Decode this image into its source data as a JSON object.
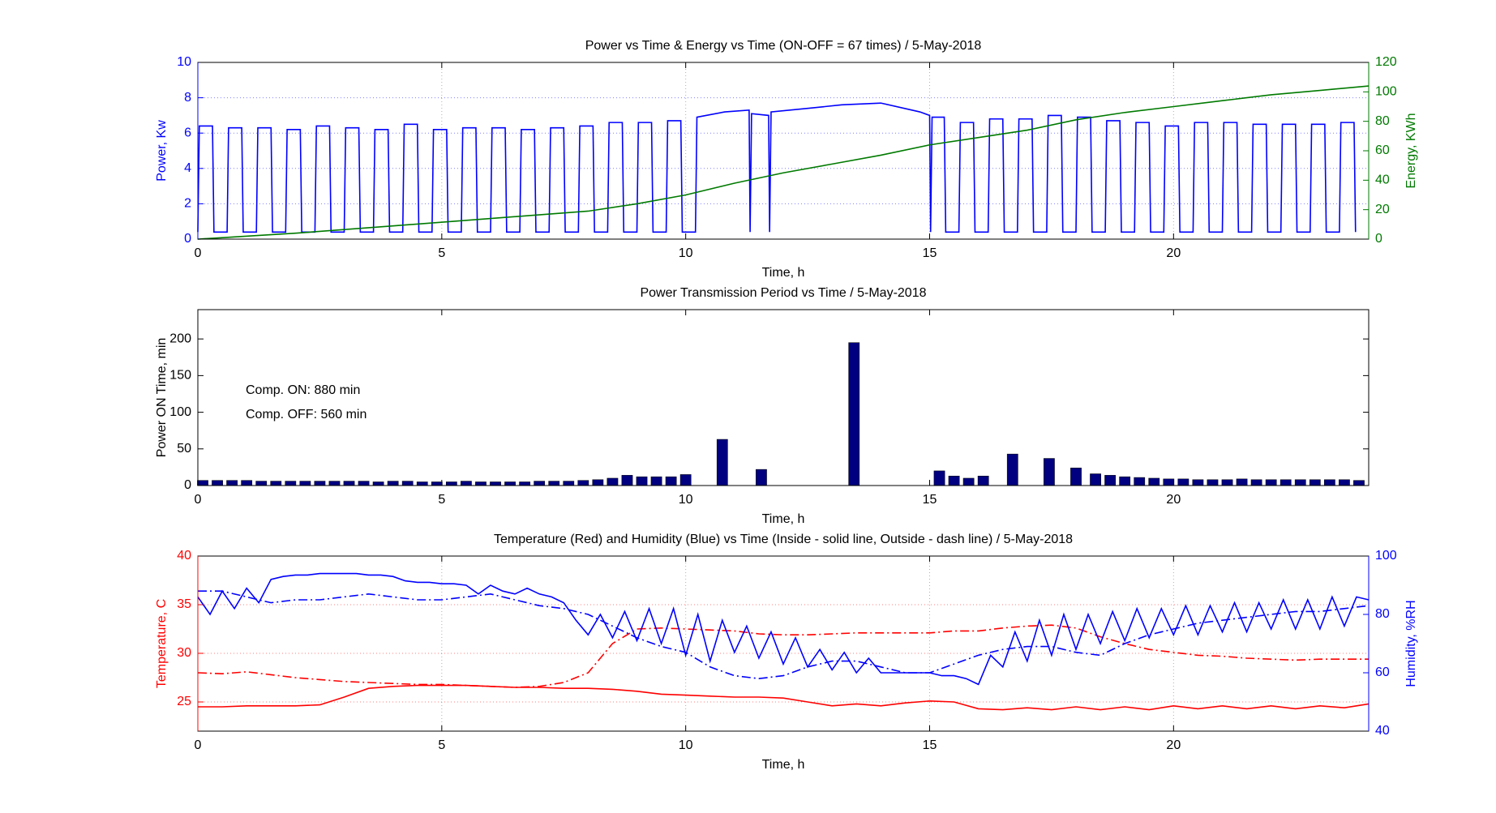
{
  "chart_data": [
    {
      "type": "line",
      "title": "Power vs Time & Energy vs Time (ON-OFF = 67 times) / 5-May-2018",
      "xlabel": "Time, h",
      "ylabel": "Power, Kw",
      "y2label": "Energy, KWh",
      "xlim": [
        0,
        24
      ],
      "xticks": [
        0,
        5,
        10,
        15,
        20
      ],
      "ylim": [
        0,
        10
      ],
      "yticks": [
        0,
        2,
        4,
        6,
        8,
        10
      ],
      "y2lim": [
        0,
        120
      ],
      "y2ticks": [
        0,
        20,
        40,
        60,
        80,
        100,
        120
      ],
      "grid": true,
      "series": [
        {
          "name": "Power",
          "color": "#0000ff",
          "dash": "solid",
          "x": [
            0,
            0.03,
            0.3,
            0.33,
            0.6,
            0.63,
            0.9,
            0.93,
            1.2,
            1.23,
            1.5,
            1.53,
            1.8,
            1.83,
            2.1,
            2.13,
            2.4,
            2.43,
            2.7,
            2.73,
            3,
            3.03,
            3.3,
            3.33,
            3.6,
            3.63,
            3.9,
            3.93,
            4.2,
            4.23,
            4.5,
            4.53,
            4.8,
            4.83,
            5.1,
            5.13,
            5.4,
            5.43,
            5.7,
            5.73,
            6,
            6.03,
            6.3,
            6.33,
            6.6,
            6.63,
            6.9,
            6.93,
            7.2,
            7.23,
            7.5,
            7.53,
            7.8,
            7.83,
            8.1,
            8.13,
            8.4,
            8.43,
            8.7,
            8.73,
            9,
            9.03,
            9.3,
            9.33,
            9.6,
            9.63,
            9.9,
            9.93,
            10.2,
            10.23,
            10.8,
            11.3,
            11.32,
            11.35,
            11.7,
            11.72,
            11.75,
            12.5,
            13.2,
            14,
            14.8,
            15,
            15.02,
            15.05,
            15.3,
            15.33,
            15.6,
            15.63,
            15.9,
            15.93,
            16.2,
            16.23,
            16.5,
            16.53,
            16.8,
            16.83,
            17.1,
            17.13,
            17.4,
            17.43,
            17.7,
            17.73,
            18,
            18.03,
            18.3,
            18.33,
            18.6,
            18.63,
            18.9,
            18.93,
            19.2,
            19.23,
            19.5,
            19.53,
            19.8,
            19.83,
            20.1,
            20.13,
            20.4,
            20.43,
            20.7,
            20.73,
            21,
            21.03,
            21.3,
            21.33,
            21.6,
            21.63,
            21.9,
            21.93,
            22.2,
            22.23,
            22.5,
            22.53,
            22.8,
            22.83,
            23.1,
            23.13,
            23.4,
            23.43,
            23.7,
            23.73
          ],
          "values": [
            0.4,
            6.4,
            6.4,
            0.4,
            0.4,
            6.3,
            6.3,
            0.4,
            0.4,
            6.3,
            6.3,
            0.4,
            0.4,
            6.2,
            6.2,
            0.4,
            0.4,
            6.4,
            6.4,
            0.4,
            0.4,
            6.3,
            6.3,
            0.4,
            0.4,
            6.2,
            6.2,
            0.4,
            0.4,
            6.5,
            6.5,
            0.4,
            0.4,
            6.2,
            6.2,
            0.4,
            0.4,
            6.3,
            6.3,
            0.4,
            0.4,
            6.3,
            6.3,
            0.4,
            0.4,
            6.2,
            6.2,
            0.4,
            0.4,
            6.3,
            6.3,
            0.4,
            0.4,
            6.4,
            6.4,
            0.4,
            0.4,
            6.6,
            6.6,
            0.4,
            0.4,
            6.6,
            6.6,
            0.4,
            0.4,
            6.7,
            6.7,
            0.4,
            0.4,
            6.9,
            7.2,
            7.3,
            0.4,
            7.1,
            7.0,
            0.4,
            7.2,
            7.4,
            7.6,
            7.7,
            7.2,
            7.0,
            0.4,
            6.9,
            6.9,
            0.4,
            0.4,
            6.6,
            6.6,
            0.4,
            0.4,
            6.8,
            6.8,
            0.4,
            0.4,
            6.8,
            6.8,
            0.4,
            0.4,
            7.0,
            7.0,
            0.4,
            0.4,
            6.9,
            6.9,
            0.4,
            0.4,
            6.7,
            6.7,
            0.4,
            0.4,
            6.6,
            6.6,
            0.4,
            0.4,
            6.4,
            6.4,
            0.4,
            0.4,
            6.6,
            6.6,
            0.4,
            0.4,
            6.6,
            6.6,
            0.4,
            0.4,
            6.5,
            6.5,
            0.4,
            0.4,
            6.5,
            6.5,
            0.4,
            0.4,
            6.5,
            6.5,
            0.4,
            0.4,
            6.6,
            6.6,
            0.4
          ]
        },
        {
          "name": "Energy",
          "color": "#007a00",
          "dash": "solid",
          "axis": "y2",
          "x": [
            0,
            2,
            4,
            6,
            8,
            9,
            10,
            11,
            12,
            13,
            14,
            15,
            16,
            17,
            18,
            19,
            20,
            21,
            22,
            23,
            24
          ],
          "values": [
            0,
            4,
            9,
            14,
            19,
            24,
            30,
            38,
            45,
            51,
            57,
            64,
            69,
            74,
            81,
            86,
            90,
            94,
            98,
            101,
            104
          ]
        }
      ]
    },
    {
      "type": "bar",
      "title": "Power Transmission Period vs Time / 5-May-2018",
      "xlabel": "Time, h",
      "ylabel": "Power ON Time, min",
      "xlim": [
        0,
        24
      ],
      "xticks": [
        0,
        5,
        10,
        15,
        20
      ],
      "ylim": [
        0,
        240
      ],
      "yticks": [
        0,
        50,
        100,
        150,
        200
      ],
      "grid": false,
      "color": "#000080",
      "annotations": [
        "Comp. ON: 880 min",
        "Comp. OFF: 560 min"
      ],
      "x": [
        0.1,
        0.4,
        0.7,
        1.0,
        1.3,
        1.6,
        1.9,
        2.2,
        2.5,
        2.8,
        3.1,
        3.4,
        3.7,
        4.0,
        4.3,
        4.6,
        4.9,
        5.2,
        5.5,
        5.8,
        6.1,
        6.4,
        6.7,
        7.0,
        7.3,
        7.6,
        7.9,
        8.2,
        8.5,
        8.8,
        9.1,
        9.4,
        9.7,
        10.0,
        10.75,
        11.55,
        13.45,
        15.2,
        15.5,
        15.8,
        16.1,
        16.7,
        17.45,
        18.0,
        18.4,
        18.7,
        19.0,
        19.3,
        19.6,
        19.9,
        20.2,
        20.5,
        20.8,
        21.1,
        21.4,
        21.7,
        22.0,
        22.3,
        22.6,
        22.9,
        23.2,
        23.5,
        23.8
      ],
      "values": [
        7,
        7,
        7,
        7,
        6,
        6,
        6,
        6,
        6,
        6,
        6,
        6,
        5,
        6,
        6,
        5,
        5,
        5,
        6,
        5,
        5,
        5,
        5,
        6,
        6,
        6,
        7,
        8,
        10,
        14,
        12,
        12,
        12,
        15,
        63,
        22,
        195,
        20,
        13,
        10,
        13,
        43,
        37,
        24,
        16,
        14,
        12,
        11,
        10,
        9,
        9,
        8,
        8,
        8,
        9,
        8,
        8,
        8,
        8,
        8,
        8,
        8,
        7
      ]
    },
    {
      "type": "line",
      "title": "Temperature (Red) and Humidity (Blue) vs Time (Inside - solid line, Outside - dash line) / 5-May-2018",
      "xlabel": "Time, h",
      "ylabel": "Temperature, C",
      "y2label": "Humidity, %RH",
      "xlim": [
        0,
        24
      ],
      "xticks": [
        0,
        5,
        10,
        15,
        20
      ],
      "ylim": [
        22,
        40
      ],
      "yticks": [
        25,
        30,
        35,
        40
      ],
      "y2lim": [
        40,
        100
      ],
      "y2ticks": [
        40,
        60,
        80,
        100
      ],
      "grid": true,
      "series": [
        {
          "name": "Inside temperature",
          "color": "#ff0000",
          "dash": "solid",
          "x": [
            0,
            0.5,
            1,
            1.5,
            2,
            2.5,
            3,
            3.5,
            4,
            4.5,
            5,
            5.5,
            6,
            6.5,
            7,
            7.5,
            8,
            8.5,
            9,
            9.5,
            10,
            10.5,
            11,
            11.5,
            12,
            12.5,
            13,
            13.5,
            14,
            14.5,
            15,
            15.5,
            16,
            16.5,
            17,
            17.5,
            18,
            18.5,
            19,
            19.5,
            20,
            20.5,
            21,
            21.5,
            22,
            22.5,
            23,
            23.5,
            24
          ],
          "values": [
            24.5,
            24.5,
            24.6,
            24.6,
            24.6,
            24.7,
            25.5,
            26.4,
            26.6,
            26.7,
            26.7,
            26.7,
            26.6,
            26.5,
            26.5,
            26.4,
            26.4,
            26.3,
            26.1,
            25.8,
            25.7,
            25.6,
            25.5,
            25.5,
            25.4,
            25.0,
            24.6,
            24.8,
            24.6,
            24.9,
            25.1,
            25.0,
            24.3,
            24.2,
            24.4,
            24.2,
            24.5,
            24.2,
            24.5,
            24.2,
            24.6,
            24.3,
            24.6,
            24.3,
            24.6,
            24.3,
            24.6,
            24.4,
            24.8
          ]
        },
        {
          "name": "Outside temperature",
          "color": "#ff0000",
          "dash": "dashdot",
          "x": [
            0,
            0.5,
            1,
            1.5,
            2,
            2.5,
            3,
            3.5,
            4,
            4.5,
            5,
            5.5,
            6,
            6.5,
            7,
            7.5,
            8,
            8.5,
            9,
            9.5,
            10,
            10.5,
            11,
            11.5,
            12,
            12.5,
            13,
            13.5,
            14,
            14.5,
            15,
            15.5,
            16,
            16.5,
            17,
            17.5,
            18,
            18.5,
            19,
            19.5,
            20,
            20.5,
            21,
            21.5,
            22,
            22.5,
            23,
            23.5,
            24
          ],
          "values": [
            28,
            27.9,
            28.1,
            27.8,
            27.5,
            27.3,
            27.1,
            27.0,
            26.9,
            26.8,
            26.8,
            26.7,
            26.6,
            26.5,
            26.6,
            27.0,
            28.0,
            31.0,
            32.5,
            32.6,
            32.5,
            32.4,
            32.3,
            32.0,
            31.9,
            31.9,
            32.0,
            32.1,
            32.1,
            32.1,
            32.1,
            32.3,
            32.3,
            32.6,
            32.8,
            32.9,
            32.6,
            31.7,
            31.0,
            30.4,
            30.1,
            29.8,
            29.7,
            29.5,
            29.4,
            29.3,
            29.4,
            29.4,
            29.4
          ]
        },
        {
          "name": "Inside humidity",
          "color": "#0000ff",
          "dash": "solid",
          "axis": "y2",
          "x": [
            0,
            0.25,
            0.5,
            0.75,
            1,
            1.25,
            1.5,
            1.75,
            2,
            2.25,
            2.5,
            2.75,
            3,
            3.25,
            3.5,
            3.75,
            4,
            4.25,
            4.5,
            4.75,
            5,
            5.25,
            5.5,
            5.75,
            6,
            6.25,
            6.5,
            6.75,
            7,
            7.25,
            7.5,
            7.75,
            8,
            8.25,
            8.5,
            8.75,
            9,
            9.25,
            9.5,
            9.75,
            10,
            10.25,
            10.5,
            10.75,
            11,
            11.25,
            11.5,
            11.75,
            12,
            12.25,
            12.5,
            12.75,
            13,
            13.25,
            13.5,
            13.75,
            14,
            14.25,
            14.5,
            14.75,
            15,
            15.25,
            15.5,
            15.75,
            16,
            16.25,
            16.5,
            16.75,
            17,
            17.25,
            17.5,
            17.75,
            18,
            18.25,
            18.5,
            18.75,
            19,
            19.25,
            19.5,
            19.75,
            20,
            20.25,
            20.5,
            20.75,
            21,
            21.25,
            21.5,
            21.75,
            22,
            22.25,
            22.5,
            22.75,
            23,
            23.25,
            23.5,
            23.75,
            24
          ],
          "values": [
            86,
            80,
            88,
            82,
            89,
            84,
            92,
            93,
            93.5,
            93.5,
            94,
            94,
            94,
            94,
            93.5,
            93.5,
            93,
            91.5,
            91,
            91,
            90.5,
            90.5,
            90,
            87,
            90,
            88,
            87,
            89,
            87,
            86,
            84,
            78,
            73,
            80,
            72,
            81,
            71,
            82,
            70,
            82,
            66,
            80,
            64,
            78,
            67,
            76,
            65,
            74,
            63,
            72,
            62,
            68,
            61,
            67,
            60,
            65,
            60,
            60,
            60,
            60,
            60,
            59,
            59,
            58,
            56,
            66,
            62,
            74,
            64,
            78,
            66,
            80,
            68,
            80,
            70,
            81,
            71,
            82,
            72,
            82,
            73,
            83,
            73,
            83,
            74,
            84,
            74,
            84,
            75,
            85,
            75,
            85,
            75,
            86,
            76,
            86,
            85
          ]
        },
        {
          "name": "Outside humidity",
          "color": "#0000ff",
          "dash": "dashdot",
          "axis": "y2",
          "x": [
            0,
            0.5,
            1,
            1.5,
            2,
            2.5,
            3,
            3.5,
            4,
            4.5,
            5,
            5.5,
            6,
            6.5,
            7,
            7.5,
            8,
            8.5,
            9,
            9.5,
            10,
            10.5,
            11,
            11.5,
            12,
            12.5,
            13,
            13.5,
            14,
            14.5,
            15,
            15.5,
            16,
            16.5,
            17,
            17.5,
            18,
            18.5,
            19,
            19.5,
            20,
            20.5,
            21,
            21.5,
            22,
            22.5,
            23,
            23.5,
            24
          ],
          "values": [
            88,
            88,
            86,
            84,
            85,
            85,
            86,
            87,
            86,
            85,
            85,
            86,
            87,
            85,
            83,
            82,
            80,
            76,
            72,
            69,
            67,
            62,
            59,
            58,
            59,
            62,
            64,
            64,
            62,
            60,
            60,
            63,
            66,
            68,
            69,
            69,
            67,
            66,
            70,
            73,
            75,
            77,
            78,
            79,
            80,
            81,
            81,
            82,
            83
          ]
        }
      ]
    }
  ]
}
